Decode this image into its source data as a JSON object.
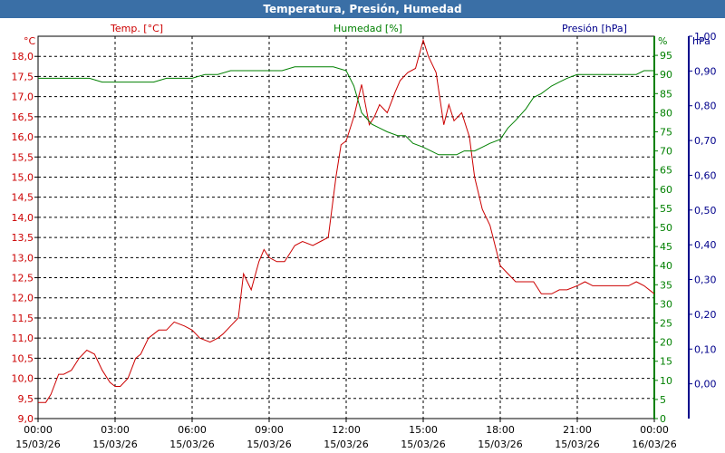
{
  "window": {
    "title": "Temperatura, Presión, Humedad"
  },
  "colors": {
    "temp": "#cc0000",
    "hum": "#008000",
    "pres": "#00008b",
    "titlebar": "#3a6fa6"
  },
  "chart_data": {
    "type": "line",
    "title": "Temperatura, Presión, Humedad",
    "grid": true,
    "x_ticks": [
      {
        "time": "00:00",
        "date": "15/03/26"
      },
      {
        "time": "03:00",
        "date": "15/03/26"
      },
      {
        "time": "06:00",
        "date": "15/03/26"
      },
      {
        "time": "09:00",
        "date": "15/03/26"
      },
      {
        "time": "12:00",
        "date": "15/03/26"
      },
      {
        "time": "15:00",
        "date": "15/03/26"
      },
      {
        "time": "18:00",
        "date": "15/03/26"
      },
      {
        "time": "21:00",
        "date": "15/03/26"
      },
      {
        "time": "00:00",
        "date": "16/03/26"
      }
    ],
    "axes": {
      "temp": {
        "label": "Temp. [°C]",
        "unit": "°C",
        "range": [
          9.0,
          18.5
        ],
        "ticks": [
          "9,0",
          "9,5",
          "10,0",
          "10,5",
          "11,0",
          "11,5",
          "12,0",
          "12,5",
          "13,0",
          "13,5",
          "14,0",
          "14,5",
          "15,0",
          "15,5",
          "16,0",
          "16,5",
          "17,0",
          "17,5",
          "18,0"
        ]
      },
      "hum": {
        "label": "Humedad [%]",
        "unit": "%",
        "range": [
          0,
          100
        ],
        "ticks": [
          "0",
          "5",
          "10",
          "15",
          "20",
          "25",
          "30",
          "35",
          "40",
          "45",
          "50",
          "55",
          "60",
          "65",
          "70",
          "75",
          "80",
          "85",
          "90",
          "95"
        ]
      },
      "pres": {
        "label": "Presión [hPa]",
        "unit": "hPa",
        "range": [
          -0.1,
          1.0
        ],
        "ticks": [
          "0,00",
          "0,10",
          "0,20",
          "0,30",
          "0,40",
          "0,50",
          "0,60",
          "0,70",
          "0,80",
          "0,90",
          "1,00"
        ]
      }
    },
    "series": [
      {
        "name": "Temp. [°C]",
        "axis": "temp",
        "x_hours": [
          0,
          0.3,
          0.5,
          0.8,
          1.0,
          1.3,
          1.6,
          1.9,
          2.2,
          2.5,
          2.8,
          3.0,
          3.2,
          3.5,
          3.8,
          4.0,
          4.3,
          4.7,
          5.0,
          5.3,
          5.7,
          6.0,
          6.3,
          6.7,
          7.0,
          7.2,
          7.5,
          7.8,
          8.0,
          8.3,
          8.6,
          8.8,
          9.0,
          9.3,
          9.6,
          9.8,
          10.0,
          10.3,
          10.7,
          11.0,
          11.3,
          11.6,
          11.8,
          12.0,
          12.3,
          12.6,
          12.9,
          13.1,
          13.3,
          13.6,
          13.9,
          14.1,
          14.4,
          14.7,
          15.0,
          15.2,
          15.5,
          15.8,
          16.0,
          16.2,
          16.5,
          16.8,
          17.0,
          17.3,
          17.6,
          17.8,
          18.0,
          18.3,
          18.6,
          19.0,
          19.3,
          19.6,
          20.0,
          20.3,
          20.6,
          21.0,
          21.3,
          21.6,
          22.0,
          22.3,
          22.6,
          23.0,
          23.3,
          23.6,
          24.0
        ],
        "values": [
          9.4,
          9.4,
          9.6,
          10.1,
          10.1,
          10.2,
          10.5,
          10.7,
          10.6,
          10.2,
          9.9,
          9.8,
          9.8,
          10.0,
          10.5,
          10.6,
          11.0,
          11.2,
          11.2,
          11.4,
          11.3,
          11.2,
          11.0,
          10.9,
          11.0,
          11.1,
          11.3,
          11.5,
          12.6,
          12.2,
          12.9,
          13.2,
          13.0,
          12.9,
          12.9,
          13.1,
          13.3,
          13.4,
          13.3,
          13.4,
          13.5,
          15.0,
          15.8,
          15.9,
          16.5,
          17.3,
          16.3,
          16.5,
          16.8,
          16.6,
          17.1,
          17.4,
          17.6,
          17.7,
          18.4,
          18.0,
          17.6,
          16.3,
          16.8,
          16.4,
          16.6,
          16.0,
          15.0,
          14.2,
          13.8,
          13.3,
          12.8,
          12.6,
          12.4,
          12.4,
          12.4,
          12.1,
          12.1,
          12.2,
          12.2,
          12.3,
          12.4,
          12.3,
          12.3,
          12.3,
          12.3,
          12.3,
          12.4,
          12.3,
          12.1
        ]
      },
      {
        "name": "Humedad [%]",
        "axis": "hum",
        "x_hours": [
          0,
          0.5,
          1.0,
          1.5,
          2.0,
          2.5,
          3.0,
          3.5,
          4.0,
          4.5,
          5.0,
          5.5,
          6.0,
          6.5,
          7.0,
          7.5,
          8.0,
          8.5,
          9.0,
          9.5,
          10.0,
          10.5,
          11.0,
          11.5,
          12.0,
          12.3,
          12.6,
          13.0,
          13.3,
          13.6,
          14.0,
          14.3,
          14.6,
          15.0,
          15.3,
          15.6,
          16.0,
          16.3,
          16.6,
          17.0,
          17.3,
          17.6,
          18.0,
          18.3,
          18.6,
          19.0,
          19.3,
          19.6,
          20.0,
          20.3,
          20.6,
          21.0,
          21.3,
          21.6,
          22.0,
          22.3,
          22.6,
          23.0,
          23.3,
          23.6,
          24.0
        ],
        "values": [
          89,
          89,
          89,
          89,
          89,
          88,
          88,
          88,
          88,
          88,
          89,
          89,
          89,
          90,
          90,
          91,
          91,
          91,
          91,
          91,
          92,
          92,
          92,
          92,
          91,
          87,
          80,
          77,
          76,
          75,
          74,
          74,
          72,
          71,
          70,
          69,
          69,
          69,
          70,
          70,
          71,
          72,
          73,
          76,
          78,
          81,
          84,
          85,
          87,
          88,
          89,
          90,
          90,
          90,
          90,
          90,
          90,
          90,
          90,
          91,
          91
        ]
      }
    ]
  }
}
